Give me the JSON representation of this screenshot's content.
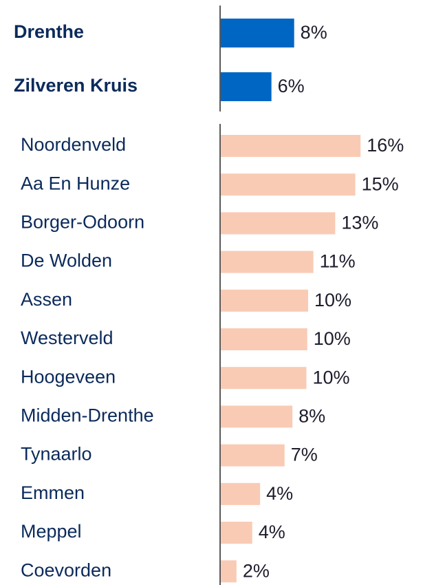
{
  "chart_data": [
    {
      "type": "bar",
      "orientation": "horizontal",
      "color": "#0066c4",
      "categories": [
        "Drenthe",
        "Zilveren Kruis"
      ],
      "values": [
        8.4,
        5.8
      ],
      "value_labels": [
        "8%",
        "6%"
      ]
    },
    {
      "type": "bar",
      "orientation": "horizontal",
      "color": "#f9cbb5",
      "categories": [
        "Noordenveld",
        "Aa En Hunze",
        "Borger-Odoorn",
        "De Wolden",
        "Assen",
        "Westerveld",
        "Hoogeveen",
        "Midden-Drenthe",
        "Tynaarlo",
        "Emmen",
        "Meppel",
        "Coevorden"
      ],
      "values": [
        16,
        15.4,
        13.1,
        10.6,
        10.0,
        9.9,
        9.8,
        8.2,
        7.3,
        4.5,
        3.6,
        1.8
      ],
      "value_labels": [
        "16%",
        "15%",
        "13%",
        "11%",
        "10%",
        "10%",
        "10%",
        "8%",
        "7%",
        "4%",
        "4%",
        "2%"
      ]
    }
  ]
}
